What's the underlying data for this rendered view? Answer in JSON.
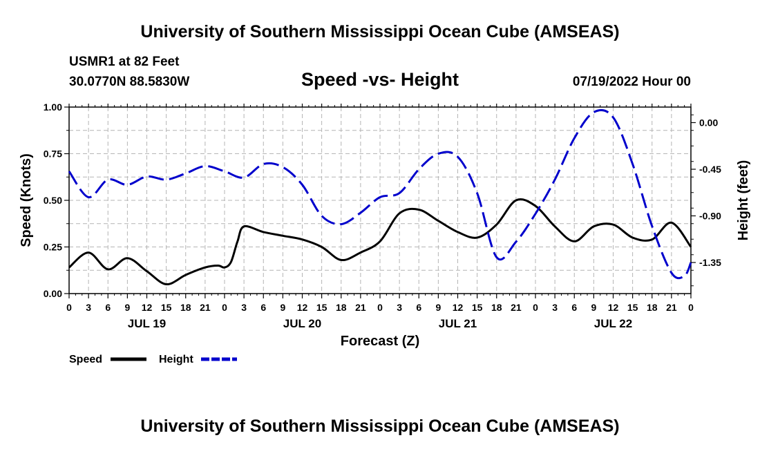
{
  "header": {
    "title": "University of Southern Mississippi Ocean Cube (AMSEAS)",
    "station": "USMR1 at 82 Feet",
    "coords": "30.0770N  88.5830W",
    "subtitle": "Speed -vs- Height",
    "datetime": "07/19/2022 Hour 00",
    "footer_title": "University of Southern Mississippi Ocean Cube (AMSEAS)"
  },
  "colors": {
    "speed": "#000000",
    "height": "#0000cc",
    "grid": "#b4b4b4"
  },
  "chart_data": {
    "type": "line",
    "title": "Speed -vs- Height",
    "xlabel": "Forecast (Z)",
    "ylabel": "Speed (Knots)",
    "y2label": "Height (feet)",
    "xlim": [
      0,
      96
    ],
    "ylim": [
      0,
      1
    ],
    "y2lim": [
      -1.65,
      0.15
    ],
    "x_tick_step": 3,
    "x_tick_labels": [
      "0",
      "3",
      "6",
      "9",
      "12",
      "15",
      "18",
      "21",
      "0",
      "3",
      "6",
      "9",
      "12",
      "15",
      "18",
      "21",
      "0",
      "3",
      "6",
      "9",
      "12",
      "15",
      "18",
      "21",
      "0",
      "3",
      "6",
      "9",
      "12",
      "15",
      "18",
      "21",
      "0"
    ],
    "y_ticks": [
      0,
      0.25,
      0.5,
      0.75,
      1.0
    ],
    "y_tick_labels": [
      "0.00",
      "0.25",
      "0.50",
      "0.75",
      "1.00"
    ],
    "y2_ticks": [
      0,
      -0.45,
      -0.9,
      -1.35
    ],
    "y2_tick_labels": [
      "0.00",
      "-0.45",
      "-0.90",
      "-1.35"
    ],
    "day_labels": [
      {
        "x": 12,
        "label": "JUL 19"
      },
      {
        "x": 36,
        "label": "JUL 20"
      },
      {
        "x": 60,
        "label": "JUL 21"
      },
      {
        "x": 84,
        "label": "JUL 22"
      }
    ],
    "legend": [
      {
        "name": "Speed",
        "style": "solid"
      },
      {
        "name": "Height",
        "style": "dashed"
      }
    ],
    "series": [
      {
        "name": "Speed",
        "axis": "left",
        "x": [
          0,
          3,
          6,
          9,
          12,
          15,
          18,
          21,
          23,
          24,
          25,
          26,
          27,
          30,
          33,
          36,
          39,
          42,
          45,
          48,
          51,
          54,
          57,
          60,
          63,
          66,
          69,
          72,
          75,
          78,
          81,
          84,
          87,
          90,
          93,
          96
        ],
        "values": [
          0.14,
          0.22,
          0.13,
          0.19,
          0.12,
          0.05,
          0.1,
          0.14,
          0.15,
          0.14,
          0.17,
          0.28,
          0.36,
          0.33,
          0.31,
          0.29,
          0.25,
          0.18,
          0.22,
          0.28,
          0.43,
          0.45,
          0.39,
          0.33,
          0.3,
          0.37,
          0.5,
          0.47,
          0.36,
          0.28,
          0.36,
          0.37,
          0.3,
          0.29,
          0.38,
          0.25
        ]
      },
      {
        "name": "Height",
        "axis": "right",
        "x": [
          0,
          3,
          6,
          9,
          12,
          15,
          18,
          21,
          24,
          27,
          30,
          33,
          36,
          39,
          42,
          45,
          48,
          51,
          54,
          57,
          60,
          63,
          66,
          69,
          72,
          75,
          78,
          81,
          84,
          87,
          90,
          93,
          95,
          96
        ],
        "values": [
          -0.47,
          -0.72,
          -0.55,
          -0.6,
          -0.52,
          -0.55,
          -0.49,
          -0.42,
          -0.47,
          -0.53,
          -0.4,
          -0.43,
          -0.6,
          -0.9,
          -0.98,
          -0.87,
          -0.72,
          -0.68,
          -0.45,
          -0.3,
          -0.33,
          -0.68,
          -1.3,
          -1.15,
          -0.88,
          -0.55,
          -0.15,
          0.1,
          0.05,
          -0.4,
          -1.0,
          -1.45,
          -1.48,
          -1.35
        ]
      }
    ]
  }
}
